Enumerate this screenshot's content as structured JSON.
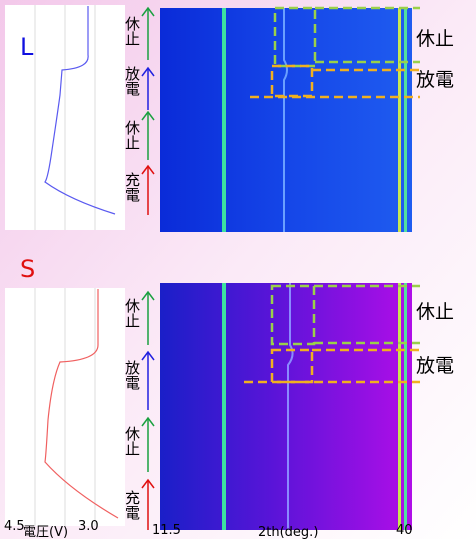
{
  "panels": [
    {
      "label": "L",
      "phases": [
        "休止",
        "放電",
        "休止",
        "充電"
      ],
      "callouts": [
        "休止",
        "放電"
      ]
    },
    {
      "label": "S",
      "phases": [
        "休止",
        "放電",
        "休止",
        "充電"
      ],
      "callouts": [
        "休止",
        "放電"
      ]
    }
  ],
  "axis": {
    "voltage_max": "4.5",
    "voltage_label": "電圧(V)",
    "voltage_min": "3.0",
    "two_theta_min": "11.5",
    "two_theta_label": "2th(deg.)",
    "two_theta_max": "40"
  }
}
